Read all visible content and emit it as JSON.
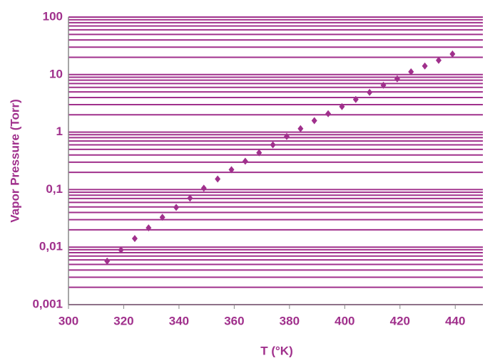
{
  "chart_data": {
    "type": "scatter",
    "x_label": "T (°K)",
    "y_label": "Vapor Pressure (Torr)",
    "color": "#a0308c",
    "log_y": true,
    "grid": true,
    "minor_grid": true,
    "xlim": [
      300,
      450
    ],
    "xticks": [
      300,
      320,
      340,
      360,
      380,
      400,
      420,
      440
    ],
    "ylim": [
      0.001,
      100
    ],
    "yticks": [
      {
        "value": 0.001,
        "label": "0,001"
      },
      {
        "value": 0.01,
        "label": "0,01"
      },
      {
        "value": 0.1,
        "label": "0,1"
      },
      1,
      10,
      100
    ],
    "series": [
      {
        "name": "Vapor Pressure",
        "x": [
          314,
          319,
          324,
          329,
          334,
          339,
          344,
          349,
          354,
          359,
          364,
          369,
          374,
          379,
          384,
          389,
          394,
          399,
          404,
          409,
          414,
          419,
          424,
          429,
          434,
          439
        ],
        "values": [
          0.0057,
          0.0089,
          0.0141,
          0.0216,
          0.033,
          0.049,
          0.071,
          0.106,
          0.153,
          0.222,
          0.312,
          0.438,
          0.6,
          0.84,
          1.15,
          1.58,
          2.09,
          2.78,
          3.7,
          4.91,
          6.53,
          8.43,
          11.2,
          14.1,
          17.7,
          22.8
        ]
      }
    ]
  }
}
